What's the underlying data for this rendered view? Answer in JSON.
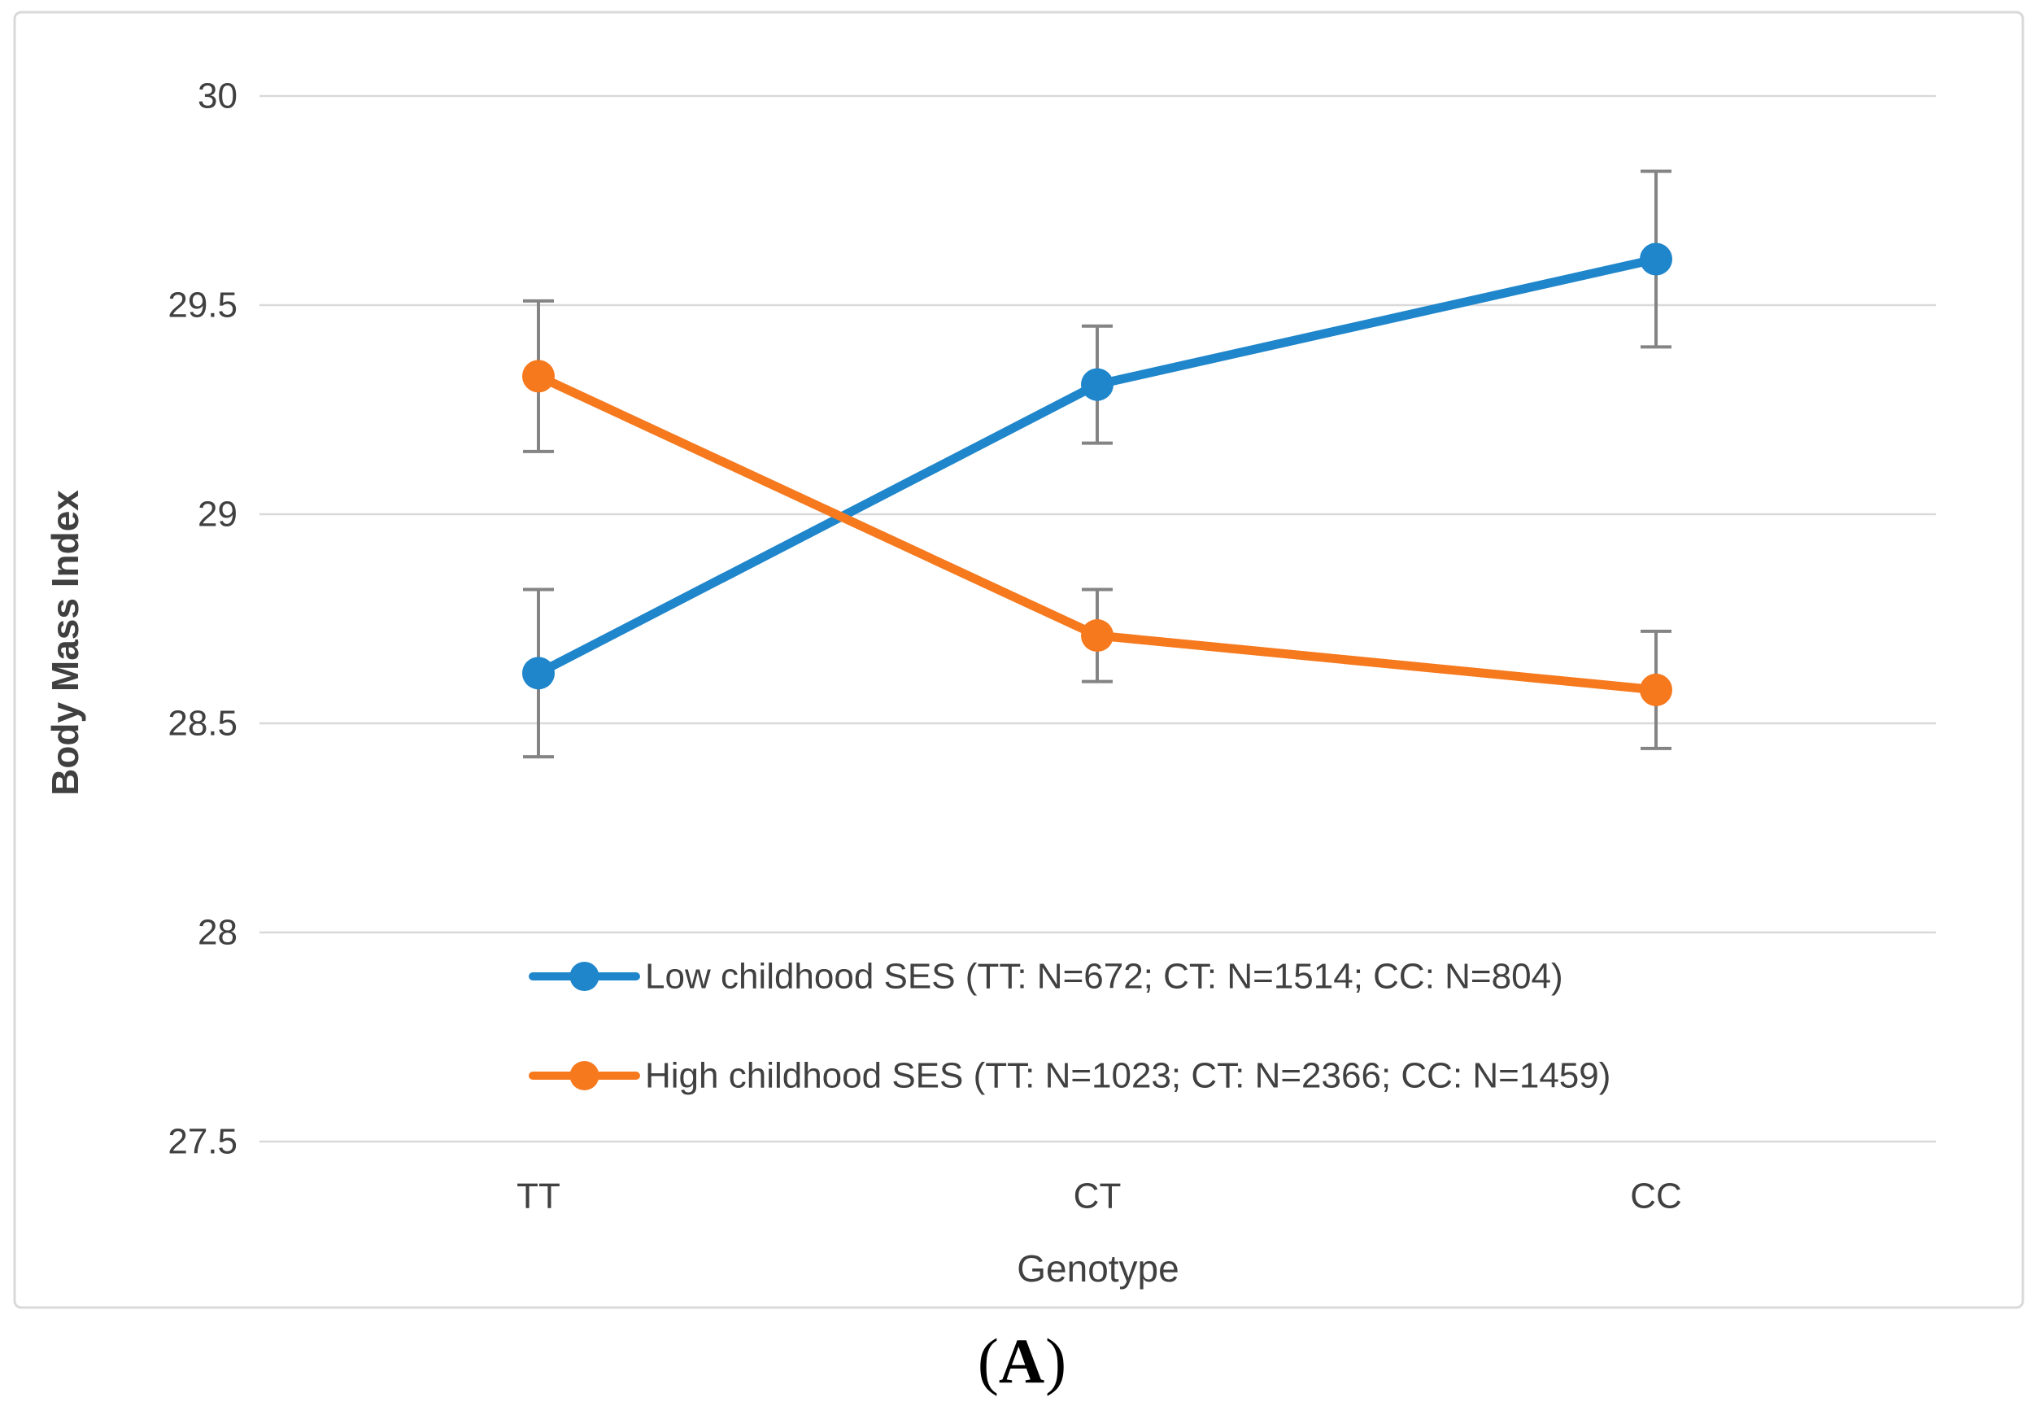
{
  "figure": {
    "caption": {
      "open": "(",
      "letter": "A",
      "close": ")"
    }
  },
  "chart_data": {
    "type": "line",
    "title": "",
    "xlabel": "Genotype",
    "ylabel": "Body Mass Index",
    "categories": [
      "TT",
      "CT",
      "CC"
    ],
    "ylim": [
      27.5,
      30
    ],
    "yticks": [
      30,
      29.5,
      29,
      28.5,
      28,
      27.5
    ],
    "grid": true,
    "legend_position": "inside-bottom-center",
    "series": [
      {
        "name": "Low childhood SES (TT: N=672; CT: N=1514; CC: N=804)",
        "color": "#1F86CB",
        "values": [
          28.62,
          29.31,
          29.61
        ],
        "error": [
          0.2,
          0.14,
          0.21
        ]
      },
      {
        "name": "High childhood SES (TT: N=1023; CT: N=2366; CC: N=1459)",
        "color": "#F6791E",
        "values": [
          29.33,
          28.71,
          28.58
        ],
        "error": [
          0.18,
          0.11,
          0.14
        ]
      }
    ],
    "colors": {
      "grid": "#D9D9D9",
      "frame_border": "#D9D9D9",
      "error_bar": "#848484",
      "text": "#404040",
      "background": "#FFFFFF"
    }
  }
}
